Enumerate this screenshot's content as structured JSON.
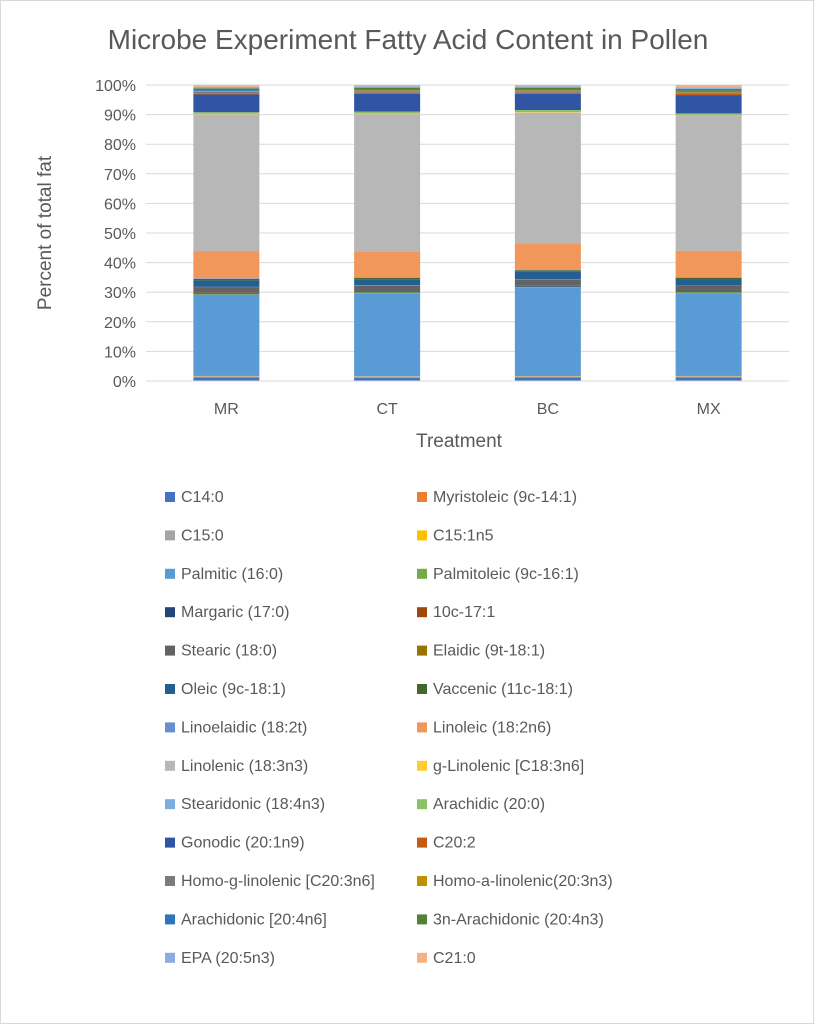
{
  "chart_data": {
    "type": "bar",
    "stacked": true,
    "percent_stacked": true,
    "title": "Microbe Experiment Fatty Acid Content in Pollen",
    "xlabel": "Treatment",
    "ylabel": "Percent of total fat",
    "ylim": [
      0,
      100
    ],
    "y_ticks": [
      "0%",
      "10%",
      "20%",
      "30%",
      "40%",
      "50%",
      "60%",
      "70%",
      "80%",
      "90%",
      "100%"
    ],
    "grid": true,
    "legend_position": "bottom",
    "categories": [
      "MR",
      "CT",
      "BC",
      "MX"
    ],
    "series": [
      {
        "name": "C14:0",
        "color": "#4472C4",
        "values": [
          1.2,
          1.1,
          1.2,
          1.2
        ]
      },
      {
        "name": "Myristoleic (9c-14:1)",
        "color": "#ED7D31",
        "values": [
          0.1,
          0.1,
          0.1,
          0.1
        ]
      },
      {
        "name": "C15:0",
        "color": "#A5A5A5",
        "values": [
          0.3,
          0.3,
          0.3,
          0.3
        ]
      },
      {
        "name": "C15:1n5",
        "color": "#FFC000",
        "values": [
          0.1,
          0.1,
          0.1,
          0.1
        ]
      },
      {
        "name": "Palmitic (16:0)",
        "color": "#5B9BD5",
        "values": [
          27.5,
          28.2,
          30.0,
          28.0
        ]
      },
      {
        "name": "Palmitoleic (9c-16:1)",
        "color": "#70AD47",
        "values": [
          0.3,
          0.3,
          0.3,
          0.3
        ]
      },
      {
        "name": "Margaric (17:0)",
        "color": "#264478",
        "values": [
          0.3,
          0.3,
          0.3,
          0.3
        ]
      },
      {
        "name": "10c-17:1",
        "color": "#9E480E",
        "values": [
          0.1,
          0.1,
          0.1,
          0.1
        ]
      },
      {
        "name": "Stearic (18:0)",
        "color": "#636363",
        "values": [
          1.7,
          1.8,
          2.0,
          1.7
        ]
      },
      {
        "name": "Elaidic (9t-18:1)",
        "color": "#997300",
        "values": [
          0.2,
          0.2,
          0.2,
          0.2
        ]
      },
      {
        "name": "Oleic (9c-18:1)",
        "color": "#255E91",
        "values": [
          2.2,
          2.0,
          2.5,
          2.0
        ]
      },
      {
        "name": "Vaccenic (11c-18:1)",
        "color": "#43682B",
        "values": [
          0.5,
          0.5,
          0.5,
          0.5
        ]
      },
      {
        "name": "Linoelaidic (18:2t)",
        "color": "#698ED0",
        "values": [
          0.2,
          0.2,
          0.2,
          0.2
        ]
      },
      {
        "name": "Linoleic (18:2n6)",
        "color": "#F1975A",
        "values": [
          9.2,
          8.8,
          9.0,
          9.0
        ]
      },
      {
        "name": "Linolenic (18:3n3)",
        "color": "#B7B7B7",
        "values": [
          46.0,
          46.5,
          44.3,
          45.5
        ]
      },
      {
        "name": "g-Linolenic [C18:3n6]",
        "color": "#FFCD33",
        "values": [
          0.2,
          0.2,
          0.2,
          0.2
        ]
      },
      {
        "name": "Stearidonic (18:4n3)",
        "color": "#7CAFDD",
        "values": [
          0.2,
          0.2,
          0.2,
          0.2
        ]
      },
      {
        "name": "Arachidic (20:0)",
        "color": "#8CC168",
        "values": [
          0.5,
          0.5,
          0.5,
          0.5
        ]
      },
      {
        "name": "Gonodic (20:1n9)",
        "color": "#2F55A4",
        "values": [
          6.0,
          6.0,
          5.5,
          6.2
        ]
      },
      {
        "name": "C20:2",
        "color": "#C55A11",
        "values": [
          0.4,
          0.4,
          0.4,
          0.4
        ]
      },
      {
        "name": "Homo-g-linolenic [C20:3n6]",
        "color": "#7B7B7B",
        "values": [
          0.5,
          0.5,
          0.5,
          0.5
        ]
      },
      {
        "name": "Homo-a-linolenic(20:3n3)",
        "color": "#BF9000",
        "values": [
          0.3,
          0.3,
          0.3,
          0.3
        ]
      },
      {
        "name": "Arachidonic [20:4n6]",
        "color": "#2E75B6",
        "values": [
          0.3,
          0.3,
          0.3,
          0.3
        ]
      },
      {
        "name": "3n-Arachidonic (20:4n3)",
        "color": "#548235",
        "values": [
          0.6,
          0.6,
          0.6,
          0.6
        ]
      },
      {
        "name": "EPA (20:5n3)",
        "color": "#8FAADC",
        "values": [
          0.5,
          0.5,
          0.5,
          0.5
        ]
      },
      {
        "name": "C21:0",
        "color": "#F4B183",
        "values": [
          0.6,
          0.4,
          0.4,
          0.8
        ]
      }
    ]
  }
}
